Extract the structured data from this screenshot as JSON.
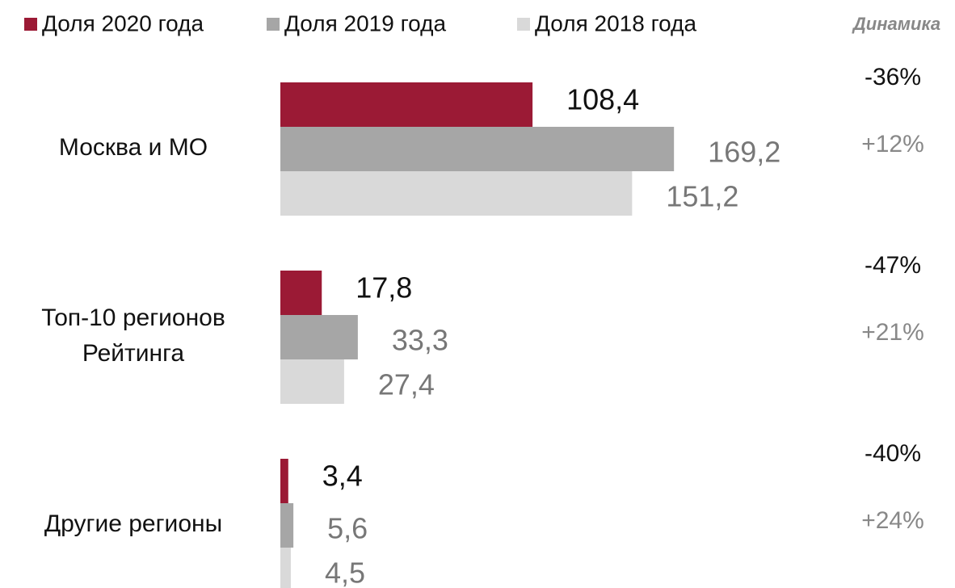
{
  "chart_data": {
    "type": "hbar",
    "categories": [
      "Москва и МО",
      "Топ-10 регионов Рейтинга",
      "Другие регионы"
    ],
    "series": [
      {
        "name": "Доля 2020 года",
        "color": "#9b1a35",
        "values": [
          108.4,
          17.8,
          3.4
        ],
        "value_labels": [
          "108,4",
          "17,8",
          "3,4"
        ]
      },
      {
        "name": "Доля 2019 года",
        "color": "#a6a6a6",
        "values": [
          169.2,
          33.3,
          5.6
        ],
        "value_labels": [
          "169,2",
          "33,3",
          "5,6"
        ]
      },
      {
        "name": "Доля 2018 года",
        "color": "#d9d9d9",
        "values": [
          151.2,
          27.4,
          4.5
        ],
        "value_labels": [
          "151,2",
          "27,4",
          "4,5"
        ]
      }
    ],
    "xlim": [
      0,
      290
    ],
    "dynamics": {
      "title": "Динамика",
      "values": [
        [
          -36,
          12
        ],
        [
          -47,
          21
        ],
        [
          -40,
          24
        ]
      ],
      "value_labels": [
        [
          "-36%",
          "+12%"
        ],
        [
          "-47%",
          "+21%"
        ],
        [
          "-40%",
          "+24%"
        ]
      ]
    }
  }
}
